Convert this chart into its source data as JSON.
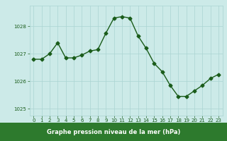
{
  "x": [
    0,
    1,
    2,
    3,
    4,
    5,
    6,
    7,
    8,
    9,
    10,
    11,
    12,
    13,
    14,
    15,
    16,
    17,
    18,
    19,
    20,
    21,
    22,
    23
  ],
  "y": [
    1026.8,
    1026.8,
    1027.0,
    1027.4,
    1026.85,
    1026.85,
    1026.95,
    1027.1,
    1027.15,
    1027.75,
    1028.3,
    1028.35,
    1028.3,
    1027.65,
    1027.2,
    1026.65,
    1026.35,
    1025.85,
    1025.45,
    1025.45,
    1025.65,
    1025.85,
    1026.1,
    1026.25
  ],
  "line_color": "#1a5c1a",
  "marker": "D",
  "markersize": 2.5,
  "linewidth": 1.0,
  "bg_color": "#cceae8",
  "grid_color": "#aad4d2",
  "xlabel": "Graphe pression niveau de la mer (hPa)",
  "xlabel_bg": "#2d7a2d",
  "tick_color": "#1a5c1a",
  "ylim": [
    1024.75,
    1028.75
  ],
  "xlim": [
    -0.5,
    23.5
  ],
  "yticks": [
    1025,
    1026,
    1027,
    1028
  ],
  "xticks": [
    0,
    1,
    2,
    3,
    4,
    5,
    6,
    7,
    8,
    9,
    10,
    11,
    12,
    13,
    14,
    15,
    16,
    17,
    18,
    19,
    20,
    21,
    22,
    23
  ]
}
